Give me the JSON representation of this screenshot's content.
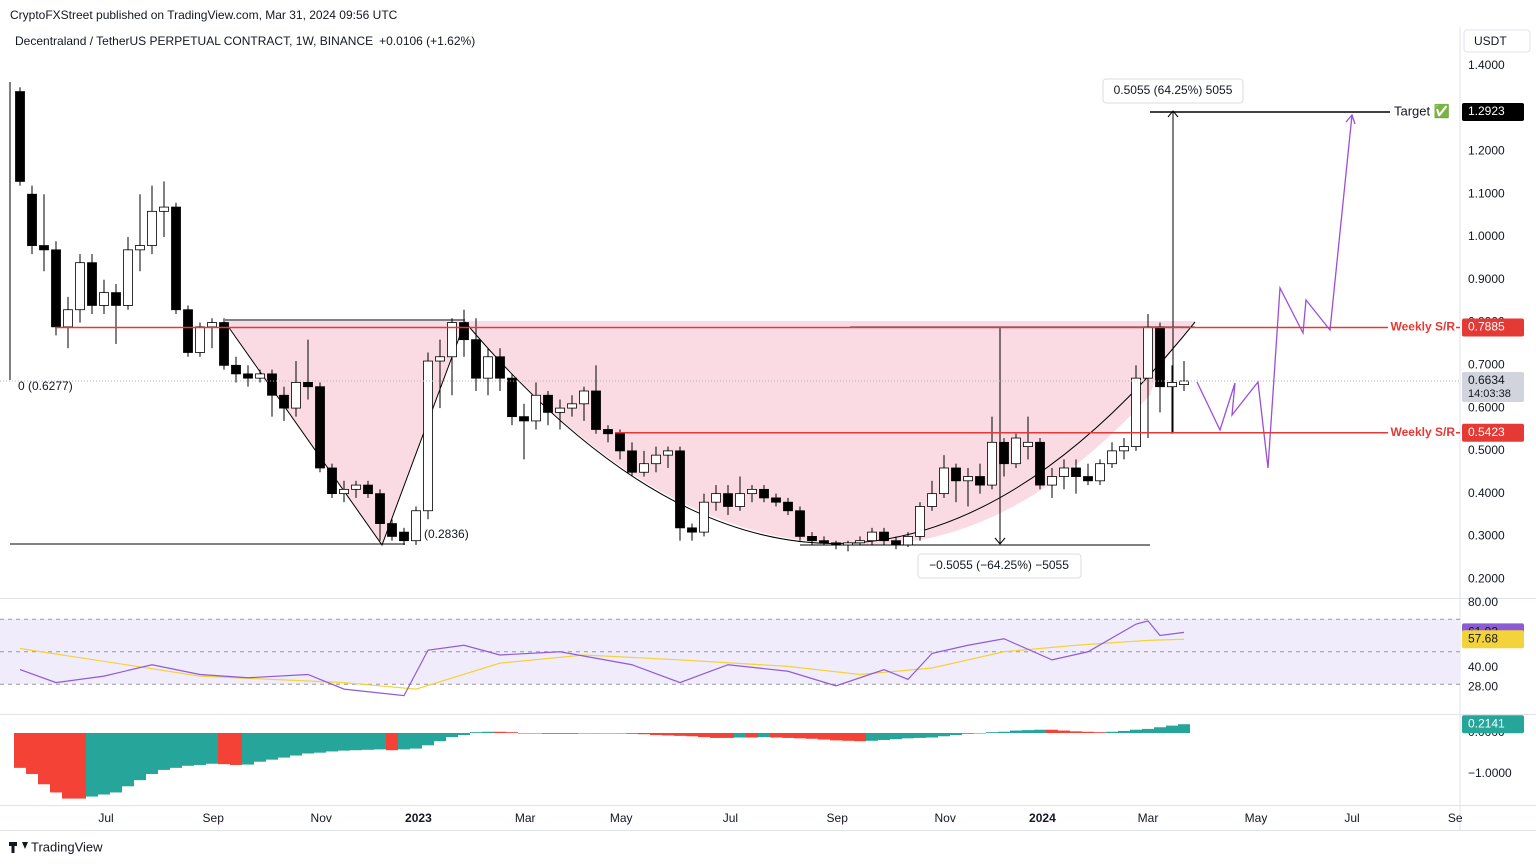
{
  "header": "CryptoFXStreet published on TradingView.com, Mar 31, 2024 09:56 UTC",
  "footer": "TradingView",
  "annotations": {
    "measure_up": "0.5055 (64.25%) 5055",
    "measure_down": "−0.5055 (−64.25%) −5055",
    "baseline": "0 (0.6277)",
    "low": "(0.2836)"
  },
  "chart_data": [
    {
      "type": "candlestick",
      "title": "Decentraland / TetherUS PERPETUAL CONTRACT, 1W, BINANCE",
      "change": "+0.0106 (+1.62%)",
      "currency": "USDT",
      "up_color": "#ffffff",
      "down_color": "#000000",
      "wick_color": "#000000",
      "open": [
        1.34,
        1.1,
        0.98,
        0.97,
        0.79,
        0.83,
        0.94,
        0.84,
        0.87,
        0.84,
        0.97,
        0.98,
        1.06,
        1.07,
        0.83,
        0.73,
        0.79,
        0.8,
        0.7,
        0.68,
        0.67,
        0.68,
        0.63,
        0.6,
        0.66,
        0.65,
        0.46,
        0.4,
        0.41,
        0.42,
        0.4,
        0.33,
        0.31,
        0.29,
        0.36,
        0.71,
        0.72,
        0.8,
        0.76,
        0.67,
        0.72,
        0.67,
        0.58,
        0.57,
        0.63,
        0.59,
        0.6,
        0.61,
        0.64,
        0.55,
        0.54,
        0.5,
        0.45,
        0.47,
        0.49,
        0.5,
        0.32,
        0.31,
        0.38,
        0.4,
        0.37,
        0.4,
        0.41,
        0.39,
        0.38,
        0.36,
        0.3,
        0.29,
        0.285,
        0.28,
        0.285,
        0.29,
        0.31,
        0.29,
        0.28,
        0.3,
        0.37,
        0.4,
        0.46,
        0.43,
        0.44,
        0.42,
        0.52,
        0.47,
        0.51,
        0.52,
        0.42,
        0.44,
        0.46,
        0.44,
        0.43,
        0.47,
        0.5,
        0.51,
        0.67,
        0.79,
        0.65,
        0.655
      ],
      "high": [
        1.35,
        1.12,
        1.1,
        0.99,
        0.86,
        0.96,
        0.96,
        0.9,
        0.89,
        1.0,
        1.1,
        1.12,
        1.13,
        1.08,
        0.84,
        0.8,
        0.81,
        0.81,
        0.72,
        0.7,
        0.69,
        0.69,
        0.65,
        0.71,
        0.76,
        0.66,
        0.47,
        0.43,
        0.43,
        0.43,
        0.41,
        0.34,
        0.32,
        0.37,
        0.73,
        0.76,
        0.81,
        0.83,
        0.81,
        0.74,
        0.74,
        0.68,
        0.61,
        0.66,
        0.64,
        0.62,
        0.63,
        0.65,
        0.7,
        0.56,
        0.55,
        0.52,
        0.5,
        0.51,
        0.51,
        0.51,
        0.33,
        0.4,
        0.42,
        0.42,
        0.44,
        0.42,
        0.42,
        0.4,
        0.39,
        0.37,
        0.31,
        0.3,
        0.29,
        0.29,
        0.3,
        0.32,
        0.32,
        0.3,
        0.31,
        0.38,
        0.43,
        0.49,
        0.47,
        0.46,
        0.47,
        0.58,
        0.53,
        0.54,
        0.58,
        0.53,
        0.46,
        0.48,
        0.48,
        0.47,
        0.48,
        0.52,
        0.53,
        0.7,
        0.82,
        0.8,
        0.7,
        0.71
      ],
      "low": [
        1.12,
        0.96,
        0.92,
        0.77,
        0.74,
        0.8,
        0.82,
        0.82,
        0.75,
        0.83,
        0.92,
        0.96,
        1.0,
        0.82,
        0.72,
        0.72,
        0.74,
        0.69,
        0.66,
        0.65,
        0.66,
        0.58,
        0.57,
        0.58,
        0.62,
        0.45,
        0.39,
        0.38,
        0.39,
        0.39,
        0.29,
        0.29,
        0.28,
        0.28,
        0.34,
        0.6,
        0.63,
        0.72,
        0.64,
        0.63,
        0.64,
        0.56,
        0.48,
        0.55,
        0.56,
        0.55,
        0.58,
        0.57,
        0.54,
        0.52,
        0.48,
        0.44,
        0.44,
        0.45,
        0.46,
        0.29,
        0.29,
        0.3,
        0.36,
        0.35,
        0.36,
        0.38,
        0.38,
        0.37,
        0.35,
        0.29,
        0.28,
        0.28,
        0.27,
        0.265,
        0.28,
        0.28,
        0.28,
        0.27,
        0.275,
        0.29,
        0.36,
        0.39,
        0.38,
        0.37,
        0.4,
        0.41,
        0.44,
        0.46,
        0.48,
        0.41,
        0.39,
        0.41,
        0.4,
        0.42,
        0.42,
        0.46,
        0.48,
        0.5,
        0.53,
        0.59,
        0.54,
        0.64
      ],
      "close": [
        1.13,
        0.98,
        0.97,
        0.79,
        0.83,
        0.94,
        0.84,
        0.87,
        0.84,
        0.97,
        0.98,
        1.06,
        1.07,
        0.83,
        0.73,
        0.79,
        0.8,
        0.7,
        0.68,
        0.67,
        0.68,
        0.63,
        0.6,
        0.66,
        0.65,
        0.46,
        0.4,
        0.41,
        0.42,
        0.4,
        0.33,
        0.3,
        0.29,
        0.36,
        0.71,
        0.72,
        0.8,
        0.76,
        0.67,
        0.72,
        0.67,
        0.58,
        0.57,
        0.63,
        0.59,
        0.6,
        0.61,
        0.64,
        0.55,
        0.54,
        0.5,
        0.45,
        0.47,
        0.49,
        0.5,
        0.32,
        0.31,
        0.38,
        0.4,
        0.37,
        0.4,
        0.41,
        0.39,
        0.38,
        0.36,
        0.3,
        0.29,
        0.285,
        0.28,
        0.285,
        0.29,
        0.31,
        0.29,
        0.28,
        0.3,
        0.37,
        0.4,
        0.46,
        0.43,
        0.44,
        0.42,
        0.52,
        0.47,
        0.53,
        0.52,
        0.42,
        0.44,
        0.46,
        0.44,
        0.43,
        0.47,
        0.5,
        0.51,
        0.67,
        0.79,
        0.65,
        0.66,
        0.6634
      ],
      "xlim": [
        -1.667,
        120
      ],
      "xticks": [
        {
          "value": 7.17,
          "label": "Jul"
        },
        {
          "value": 16.1,
          "label": "Sep"
        },
        {
          "value": 25.1,
          "label": "Nov"
        },
        {
          "value": 33.2,
          "label": "2023"
        },
        {
          "value": 42.1,
          "label": "Mar"
        },
        {
          "value": 50.1,
          "label": "May"
        },
        {
          "value": 59.2,
          "label": "Jul"
        },
        {
          "value": 68.1,
          "label": "Sep"
        },
        {
          "value": 77.1,
          "label": "Nov"
        },
        {
          "value": 85.2,
          "label": "2024"
        },
        {
          "value": 94,
          "label": "Mar"
        },
        {
          "value": 103,
          "label": "May"
        },
        {
          "value": 111,
          "label": "Jul"
        },
        {
          "value": 119.6,
          "label": "Se"
        }
      ],
      "ylim": [
        0.156,
        1.491
      ],
      "yticks": [
        {
          "value": 1.4,
          "label": "1.4000"
        },
        {
          "value": 1.3,
          "label": "1.3000"
        },
        {
          "value": 1.2,
          "label": "1.2000"
        },
        {
          "value": 1.1,
          "label": "1.1000"
        },
        {
          "value": 1.0,
          "label": "1.0000"
        },
        {
          "value": 0.9,
          "label": "0.9000"
        },
        {
          "value": 0.8,
          "label": "0.8000"
        },
        {
          "value": 0.7,
          "label": "0.7000"
        },
        {
          "value": 0.6,
          "label": "0.6000"
        },
        {
          "value": 0.5,
          "label": "0.5000"
        },
        {
          "value": 0.4,
          "label": "0.4000"
        },
        {
          "value": 0.3,
          "label": "0.3000"
        },
        {
          "value": 0.2,
          "label": "0.2000"
        }
      ],
      "levels": [
        {
          "value": 0.7885,
          "name": "Weekly S/R",
          "color": "#e53935"
        },
        {
          "value": 0.5423,
          "name": "Weekly S/R",
          "color": "#e53935"
        }
      ],
      "target": {
        "value": 1.2923,
        "name": "Target ✅"
      },
      "last": {
        "value": 0.6634,
        "countdown": "14:03:38"
      }
    },
    {
      "type": "line",
      "ylim": [
        12.3,
        81.85
      ],
      "yticks": [
        {
          "value": 80,
          "label": "80.00"
        },
        {
          "value": 40,
          "label": "40.00"
        },
        {
          "value": 28,
          "label": "28.00"
        }
      ],
      "bands": [
        70,
        50,
        30
      ],
      "band_color": "#f1ecfb",
      "series": [
        {
          "color": "#8e5bd6",
          "x": [
            0,
            3,
            7,
            11,
            15,
            19,
            24,
            27,
            32,
            34,
            37,
            40,
            45,
            51,
            55,
            59,
            64,
            68,
            72,
            74,
            76,
            79,
            82,
            86,
            89,
            93,
            94,
            95,
            97
          ],
          "values": [
            39,
            31,
            35,
            42,
            36,
            34,
            36,
            27,
            23,
            51,
            54,
            48,
            50,
            42,
            31,
            42,
            38,
            29,
            39,
            33,
            49,
            54,
            58,
            45,
            50,
            67,
            69,
            60,
            61.93
          ]
        },
        {
          "color": "#f2d33b",
          "x": [
            0,
            15,
            27,
            33,
            40,
            47,
            55,
            64,
            70,
            76,
            82,
            88,
            94,
            97
          ],
          "values": [
            52,
            35,
            31,
            27,
            43,
            48,
            45,
            41,
            36,
            40,
            50,
            54,
            57,
            57.68
          ]
        }
      ]
    },
    {
      "type": "histogram",
      "ylim": [
        -1.756,
        0.439
      ],
      "rise_color": "#26a69a",
      "fall_color": "#f44336",
      "yticks": [
        {
          "value": 0,
          "label": "0.0000"
        },
        {
          "value": -1,
          "label": "−1.0000"
        }
      ],
      "values": [
        -0.85,
        -1.0,
        -1.25,
        -1.45,
        -1.6,
        -1.6,
        -1.55,
        -1.5,
        -1.45,
        -1.3,
        -1.15,
        -1.0,
        -0.9,
        -0.85,
        -0.8,
        -0.78,
        -0.75,
        -0.76,
        -0.78,
        -0.77,
        -0.7,
        -0.65,
        -0.6,
        -0.55,
        -0.5,
        -0.48,
        -0.45,
        -0.43,
        -0.42,
        -0.41,
        -0.4,
        -0.42,
        -0.4,
        -0.38,
        -0.3,
        -0.2,
        -0.1,
        -0.05,
        0.02,
        0.03,
        0.03,
        0.02,
        0,
        -0.01,
        -0.02,
        -0.02,
        -0.02,
        -0.01,
        -0.01,
        0,
        -0.01,
        -0.02,
        -0.03,
        -0.05,
        -0.06,
        -0.07,
        -0.08,
        -0.1,
        -0.12,
        -0.12,
        -0.11,
        -0.11,
        -0.1,
        -0.11,
        -0.12,
        -0.13,
        -0.14,
        -0.16,
        -0.18,
        -0.19,
        -0.2,
        -0.19,
        -0.17,
        -0.15,
        -0.13,
        -0.12,
        -0.11,
        -0.08,
        -0.05,
        -0.02,
        0,
        0.02,
        0.03,
        0.06,
        0.07,
        0.08,
        0.08,
        0.06,
        0.04,
        0.03,
        0.02,
        0.03,
        0.05,
        0.08,
        0.1,
        0.14,
        0.18,
        0.2141
      ]
    }
  ]
}
